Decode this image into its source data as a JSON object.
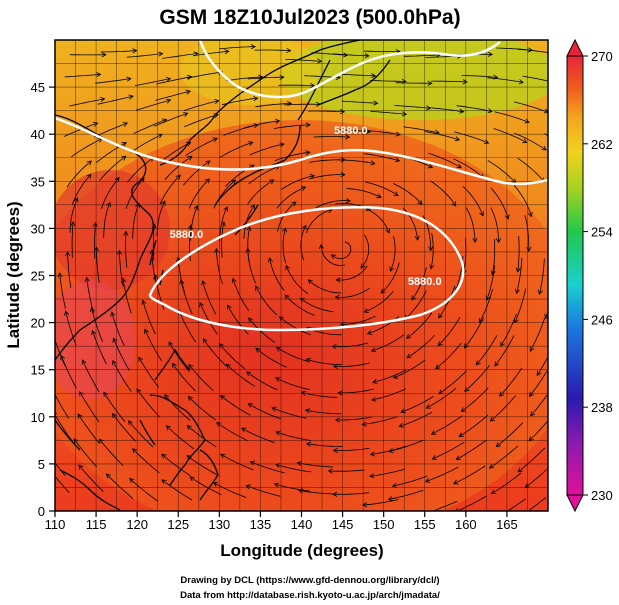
{
  "title": "GSM 18Z10Jul2023 (500.0hPa)",
  "map": {
    "xlabel": "Longitude (degrees)",
    "ylabel": "Latitude  (degrees)",
    "x_ticks": [
      "110",
      "115",
      "120",
      "125",
      "130",
      "135",
      "140",
      "145",
      "150",
      "155",
      "160",
      "165"
    ],
    "y_ticks": [
      "0",
      "5",
      "10",
      "15",
      "20",
      "25",
      "30",
      "35",
      "40",
      "45"
    ],
    "lon_range": [
      110,
      170
    ],
    "lat_range": [
      0,
      50
    ],
    "fill_variable_colors": {
      "low": "#e8243a",
      "mid": "#f05a1e",
      "high": "#f3a51e",
      "north": "#a8d21e"
    },
    "contours": [
      {
        "label": "5880.0",
        "label_lon": 146,
        "label_lat": 40.0
      },
      {
        "label": "5880.0",
        "label_lon": 126,
        "label_lat": 29.0
      },
      {
        "label": "5880.0",
        "label_lon": 155,
        "label_lat": 24.0
      }
    ]
  },
  "colorbar": {
    "ticks": [
      "270",
      "262",
      "254",
      "246",
      "238",
      "230"
    ],
    "range": [
      230,
      270
    ],
    "colors": [
      "#e0109a",
      "#2a1ab0",
      "#1a78e0",
      "#1ad0d0",
      "#22c84a",
      "#a8d21e",
      "#f0d21e",
      "#f3a51e",
      "#f05a1e",
      "#e8243a"
    ]
  },
  "credits": {
    "line1": "Drawing by DCL (https://www.gfd-dennou.org/library/dcl/)",
    "line2": "Data from http://database.rish.kyoto-u.ac.jp/arch/jmadata/"
  }
}
